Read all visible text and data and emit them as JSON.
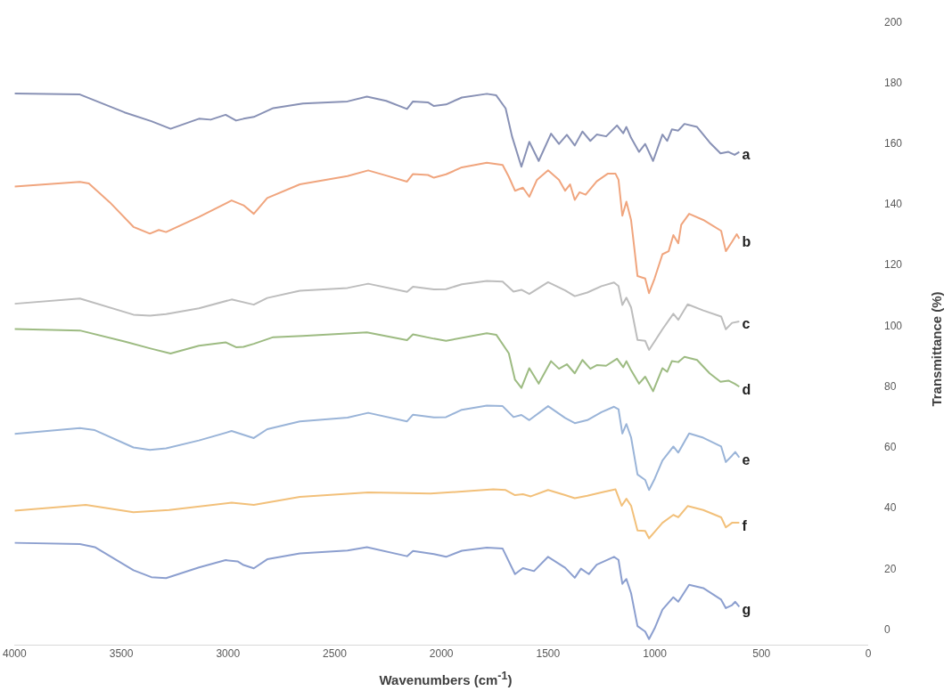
{
  "chart_data": {
    "type": "line",
    "xlabel": "Wavenumbers (cm$^{-1}$)",
    "ylabel": "Transmittance (%)",
    "xlim": [
      4000,
      0
    ],
    "xticks": [
      4000,
      3500,
      3000,
      2500,
      2000,
      1500,
      1000,
      500,
      0
    ],
    "ylim": [
      -5,
      200
    ],
    "yticks": [
      0,
      20,
      40,
      60,
      80,
      100,
      120,
      140,
      160,
      180,
      200
    ],
    "series": [
      {
        "name": "a",
        "color": "#8891b5",
        "x": [
          4000,
          3694,
          3485,
          3359,
          3269,
          3136,
          3081,
          3011,
          2962,
          2927,
          2879,
          2788,
          2649,
          2440,
          2349,
          2259,
          2161,
          2133,
          2063,
          2035,
          1978,
          1904,
          1787,
          1743,
          1699,
          1669,
          1625,
          1588,
          1544,
          1486,
          1449,
          1412,
          1375,
          1339,
          1302,
          1272,
          1228,
          1177,
          1148,
          1133,
          1111,
          1074,
          1045,
          1008,
          964,
          942,
          920,
          890,
          861,
          802,
          743,
          692,
          655,
          626,
          604
        ],
        "values": [
          176.6,
          176.3,
          170.4,
          167.5,
          165.0,
          168.3,
          168.0,
          169.6,
          167.7,
          168.3,
          168.9,
          171.8,
          173.3,
          174.0,
          175.6,
          174.2,
          171.5,
          174.0,
          173.7,
          172.5,
          173.0,
          175.3,
          176.5,
          176.0,
          171.7,
          162.5,
          152.5,
          160.7,
          154.4,
          163.4,
          160.0,
          163.0,
          159.5,
          164.1,
          161.0,
          163.1,
          162.5,
          166.1,
          163.5,
          165.6,
          162.0,
          157.4,
          160.0,
          154.4,
          163.1,
          161.0,
          164.8,
          164.4,
          166.6,
          165.6,
          160.5,
          156.9,
          157.4,
          156.4,
          157.4
        ]
      },
      {
        "name": "b",
        "color": "#f0a57e",
        "x": [
          4000,
          3694,
          3652,
          3554,
          3443,
          3366,
          3324,
          3290,
          3136,
          2983,
          2927,
          2879,
          2816,
          2663,
          2440,
          2343,
          2259,
          2161,
          2133,
          2063,
          2035,
          1978,
          1904,
          1787,
          1713,
          1684,
          1655,
          1618,
          1588,
          1552,
          1500,
          1449,
          1420,
          1397,
          1375,
          1353,
          1324,
          1272,
          1221,
          1184,
          1170,
          1152,
          1133,
          1111,
          1096,
          1081,
          1045,
          1027,
          1001,
          964,
          935,
          913,
          890,
          876,
          839,
          773,
          689,
          667,
          638,
          616,
          604
        ],
        "values": [
          146.0,
          147.5,
          147.0,
          140.8,
          132.7,
          130.5,
          131.7,
          131.0,
          136.0,
          141.4,
          139.8,
          137.0,
          142.2,
          146.7,
          149.4,
          151.3,
          149.6,
          147.6,
          150.1,
          149.8,
          148.9,
          150.0,
          152.3,
          153.8,
          153.1,
          149.2,
          144.6,
          145.6,
          142.6,
          148.2,
          151.3,
          148.2,
          144.6,
          146.7,
          141.6,
          144.1,
          143.3,
          147.7,
          150.2,
          150.2,
          148.2,
          136.4,
          141.0,
          134.9,
          125.8,
          116.5,
          115.7,
          110.9,
          115.7,
          123.7,
          124.7,
          130.0,
          127.3,
          133.4,
          137.0,
          135.0,
          131.4,
          124.7,
          127.8,
          130.3,
          128.8
        ]
      },
      {
        "name": "c",
        "color": "#bdbdbd",
        "x": [
          4000,
          3694,
          3443,
          3366,
          3290,
          3136,
          2983,
          2879,
          2816,
          2663,
          2440,
          2343,
          2161,
          2133,
          2035,
          1978,
          1904,
          1787,
          1713,
          1662,
          1625,
          1588,
          1500,
          1420,
          1375,
          1316,
          1250,
          1191,
          1170,
          1152,
          1133,
          1111,
          1081,
          1045,
          1027,
          1001,
          964,
          913,
          890,
          846,
          773,
          689,
          667,
          638,
          604
        ],
        "values": [
          107.4,
          109.1,
          103.8,
          103.5,
          104.0,
          105.9,
          108.8,
          107.1,
          109.3,
          111.7,
          112.6,
          114.0,
          111.3,
          113.0,
          112.1,
          112.2,
          113.8,
          114.9,
          114.7,
          111.4,
          112.0,
          110.6,
          114.5,
          111.8,
          109.9,
          111.1,
          113.2,
          114.4,
          113.2,
          107.0,
          109.4,
          106.2,
          95.5,
          95.2,
          92.2,
          95.0,
          99.0,
          104.1,
          102.1,
          107.2,
          105.2,
          103.2,
          99.0,
          101.1,
          101.6
        ]
      },
      {
        "name": "d",
        "color": "#9dbb82",
        "x": [
          4000,
          3694,
          3485,
          3359,
          3269,
          3136,
          3011,
          2962,
          2927,
          2879,
          2788,
          2649,
          2349,
          2161,
          2133,
          2035,
          1978,
          1787,
          1743,
          1684,
          1655,
          1625,
          1588,
          1544,
          1486,
          1449,
          1412,
          1375,
          1339,
          1302,
          1272,
          1228,
          1177,
          1148,
          1133,
          1111,
          1074,
          1045,
          1008,
          964,
          942,
          920,
          890,
          861,
          802,
          743,
          692,
          655,
          626,
          604
        ],
        "values": [
          99.1,
          98.6,
          95.0,
          92.6,
          91.0,
          93.6,
          94.7,
          93.1,
          93.2,
          94.2,
          96.4,
          96.8,
          98.0,
          95.4,
          97.3,
          95.9,
          95.2,
          97.7,
          97.2,
          91.1,
          82.4,
          79.7,
          86.2,
          81.1,
          88.5,
          86.0,
          87.5,
          84.5,
          88.9,
          86.0,
          87.2,
          87.0,
          89.3,
          86.5,
          88.5,
          85.5,
          81.1,
          83.4,
          78.6,
          86.2,
          85.0,
          88.5,
          88.2,
          89.9,
          88.9,
          84.5,
          81.7,
          82.1,
          81.1,
          80.1
        ]
      },
      {
        "name": "e",
        "color": "#9ab4d8",
        "x": [
          4000,
          3694,
          3624,
          3443,
          3366,
          3290,
          3136,
          2983,
          2879,
          2816,
          2663,
          2440,
          2343,
          2161,
          2133,
          2035,
          1978,
          1904,
          1787,
          1713,
          1662,
          1625,
          1588,
          1500,
          1420,
          1375,
          1316,
          1250,
          1191,
          1170,
          1152,
          1133,
          1111,
          1081,
          1045,
          1027,
          1001,
          964,
          913,
          890,
          839,
          773,
          689,
          667,
          638,
          623,
          604
        ],
        "values": [
          64.6,
          66.5,
          65.8,
          60.1,
          59.3,
          59.8,
          62.4,
          65.5,
          63.2,
          66.1,
          68.7,
          69.9,
          71.5,
          68.7,
          70.9,
          70.0,
          70.1,
          72.5,
          73.9,
          73.7,
          70.1,
          70.8,
          69.1,
          73.7,
          69.8,
          68.1,
          69.1,
          71.7,
          73.5,
          72.7,
          64.7,
          67.8,
          63.4,
          51.2,
          49.4,
          46.1,
          49.7,
          55.8,
          60.4,
          58.4,
          64.7,
          63.3,
          60.4,
          55.3,
          57.4,
          58.6,
          56.8
        ]
      },
      {
        "name": "f",
        "color": "#f2c07a",
        "x": [
          4000,
          3666,
          3443,
          3276,
          2983,
          2879,
          2663,
          2343,
          2161,
          2051,
          1904,
          1757,
          1699,
          1655,
          1618,
          1581,
          1500,
          1420,
          1375,
          1316,
          1250,
          1184,
          1155,
          1133,
          1111,
          1081,
          1045,
          1027,
          1001,
          964,
          913,
          890,
          846,
          773,
          689,
          667,
          638,
          604
        ],
        "values": [
          39.3,
          41.2,
          38.8,
          39.5,
          41.9,
          41.2,
          43.8,
          45.3,
          45.1,
          44.9,
          45.6,
          46.3,
          46.1,
          44.4,
          44.7,
          44.0,
          46.1,
          44.4,
          43.4,
          44.2,
          45.3,
          46.3,
          40.9,
          43.2,
          40.9,
          32.8,
          32.6,
          30.2,
          32.3,
          35.3,
          37.9,
          37.1,
          40.8,
          39.5,
          37.1,
          33.8,
          35.3,
          35.3
        ]
      },
      {
        "name": "g",
        "color": "#8c9fcf",
        "x": [
          4000,
          3694,
          3624,
          3443,
          3359,
          3290,
          3136,
          3011,
          2955,
          2927,
          2879,
          2816,
          2663,
          2440,
          2349,
          2161,
          2133,
          2035,
          1978,
          1904,
          1787,
          1713,
          1655,
          1618,
          1566,
          1500,
          1420,
          1375,
          1346,
          1309,
          1272,
          1191,
          1170,
          1152,
          1133,
          1111,
          1081,
          1045,
          1027,
          1001,
          964,
          913,
          890,
          839,
          773,
          689,
          667,
          638,
          623,
          604
        ],
        "values": [
          28.7,
          28.3,
          27.3,
          19.7,
          17.4,
          17.1,
          20.6,
          23.0,
          22.6,
          21.4,
          20.3,
          23.3,
          25.2,
          26.2,
          27.3,
          24.3,
          26.0,
          25.0,
          24.1,
          26.1,
          27.1,
          26.8,
          18.4,
          20.4,
          19.4,
          24.1,
          20.5,
          17.2,
          20.2,
          18.4,
          21.5,
          24.1,
          23.1,
          15.2,
          16.8,
          12.1,
          1.3,
          -0.5,
          -3.0,
          0.5,
          6.7,
          10.8,
          9.3,
          14.9,
          13.8,
          10.0,
          7.2,
          8.2,
          9.3,
          7.7
        ]
      }
    ]
  }
}
